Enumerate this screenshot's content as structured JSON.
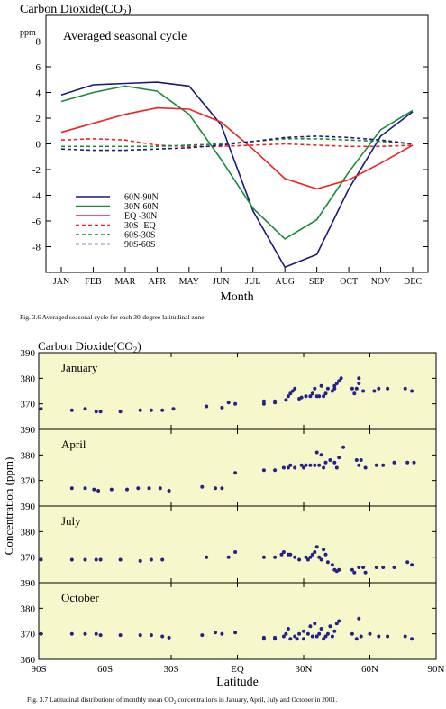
{
  "chart_data": [
    {
      "type": "line",
      "title": "Carbon Dioxide(CO2)",
      "title_base": "Carbon Dioxide(CO",
      "title_sub": "2",
      "title_close": ")",
      "subtitle": "Averaged seasonal cycle",
      "xlabel": "Month",
      "ylabel": "ppm",
      "ylim": [
        -10,
        10
      ],
      "yticks": [
        -8,
        -6,
        -4,
        -2,
        0,
        2,
        4,
        6,
        8
      ],
      "categories": [
        "JAN",
        "FEB",
        "MAR",
        "APR",
        "MAY",
        "JUN",
        "JUL",
        "AUG",
        "SEP",
        "OCT",
        "NOV",
        "DEC"
      ],
      "legend_position": "bottom-left",
      "grid": false,
      "series": [
        {
          "name": "60N-90N",
          "color": "#1a1a7a",
          "dash": "solid",
          "values": [
            3.8,
            4.6,
            4.7,
            4.8,
            4.5,
            1.5,
            -5.2,
            -9.6,
            -8.6,
            -3.5,
            0.6,
            2.5
          ]
        },
        {
          "name": "30N-60N",
          "color": "#1a8a3a",
          "dash": "solid",
          "values": [
            3.3,
            4.0,
            4.5,
            4.1,
            2.3,
            -1.2,
            -5.0,
            -7.4,
            -5.9,
            -2.2,
            1.1,
            2.6
          ]
        },
        {
          "name": "EQ -30N",
          "color": "#ee2222",
          "dash": "solid",
          "values": [
            0.9,
            1.6,
            2.3,
            2.8,
            2.7,
            1.7,
            -0.4,
            -2.7,
            -3.5,
            -2.8,
            -1.5,
            -0.1
          ]
        },
        {
          "name": "30S- EQ",
          "color": "#ee2222",
          "dash": "dashed",
          "values": [
            0.3,
            0.4,
            0.3,
            -0.1,
            -0.2,
            -0.2,
            -0.1,
            0.0,
            -0.1,
            -0.2,
            -0.2,
            -0.1
          ]
        },
        {
          "name": "60S-30S",
          "color": "#1a8a3a",
          "dash": "dashed",
          "values": [
            -0.2,
            -0.2,
            -0.2,
            -0.2,
            -0.1,
            0.0,
            0.2,
            0.4,
            0.4,
            0.3,
            0.2,
            0.0
          ]
        },
        {
          "name": "90S-60S",
          "color": "#1a1a7a",
          "dash": "dashed",
          "values": [
            -0.4,
            -0.5,
            -0.5,
            -0.4,
            -0.3,
            -0.1,
            0.2,
            0.5,
            0.6,
            0.5,
            0.3,
            0.0
          ]
        }
      ],
      "caption": "Fig. 3.6  Averaged seasonal cycle for each 30-degree latitudinal zone."
    },
    {
      "type": "scatter",
      "title": "Carbon Dioxide(CO2)",
      "title_base": "Carbon Dioxide(CO",
      "title_sub": "2",
      "title_close": ")",
      "xlabel": "Latitude",
      "ylabel": "Concentration (ppm)",
      "xlim": [
        -90,
        90
      ],
      "xticks": [
        -90,
        -60,
        -30,
        0,
        30,
        60,
        90
      ],
      "xtick_labels": [
        "90S",
        "60S",
        "30S",
        "EQ",
        "30N",
        "60N",
        "90N"
      ],
      "ylim": [
        360,
        390
      ],
      "yticks": [
        360,
        370,
        380,
        390
      ],
      "background": "#f7f7cc",
      "marker_color": "#22228a",
      "caption_parts": [
        "Fig. 3.7  Latitudinal distributions of monthly mean CO",
        "2",
        " concentrations in January, April, July and October in 2001."
      ],
      "panels": [
        {
          "name": "January",
          "points": [
            [
              -89,
              368
            ],
            [
              -75,
              367.5
            ],
            [
              -69,
              368
            ],
            [
              -64,
              367
            ],
            [
              -62,
              367
            ],
            [
              -53,
              367
            ],
            [
              -44,
              367.5
            ],
            [
              -39,
              367.5
            ],
            [
              -34,
              367.5
            ],
            [
              -29,
              368
            ],
            [
              -14,
              369
            ],
            [
              -7,
              368.5
            ],
            [
              -4,
              370.5
            ],
            [
              -1,
              370
            ],
            [
              12,
              370
            ],
            [
              12,
              371
            ],
            [
              17,
              370.5
            ],
            [
              17,
              371
            ],
            [
              22,
              371.5
            ],
            [
              23,
              373
            ],
            [
              24,
              374
            ],
            [
              25,
              375
            ],
            [
              26,
              376
            ],
            [
              28,
              372
            ],
            [
              29,
              372.5
            ],
            [
              31,
              373
            ],
            [
              33,
              373
            ],
            [
              34,
              374
            ],
            [
              35,
              376
            ],
            [
              36,
              373
            ],
            [
              37,
              373
            ],
            [
              38,
              377
            ],
            [
              39,
              373
            ],
            [
              40,
              374
            ],
            [
              41,
              376
            ],
            [
              43,
              375
            ],
            [
              44,
              376
            ],
            [
              44,
              377
            ],
            [
              45,
              378
            ],
            [
              46,
              379
            ],
            [
              47,
              380
            ],
            [
              52,
              376
            ],
            [
              53,
              374
            ],
            [
              54,
              376
            ],
            [
              55,
              378
            ],
            [
              55,
              380
            ],
            [
              57,
              375
            ],
            [
              62,
              375
            ],
            [
              64,
              376
            ],
            [
              68,
              376
            ],
            [
              76,
              376
            ],
            [
              79,
              375
            ]
          ]
        },
        {
          "name": "April",
          "points": [
            [
              -75,
              367
            ],
            [
              -69,
              367
            ],
            [
              -65,
              366.5
            ],
            [
              -63,
              366
            ],
            [
              -57,
              366.5
            ],
            [
              -50,
              366.5
            ],
            [
              -45,
              367
            ],
            [
              -40,
              367
            ],
            [
              -35,
              367
            ],
            [
              -31,
              366
            ],
            [
              -16,
              367.5
            ],
            [
              -10,
              367
            ],
            [
              -7,
              367
            ],
            [
              -1,
              373
            ],
            [
              12,
              374
            ],
            [
              17,
              374
            ],
            [
              21,
              375
            ],
            [
              23,
              375
            ],
            [
              24,
              376
            ],
            [
              26,
              375
            ],
            [
              29,
              376
            ],
            [
              30,
              375
            ],
            [
              31,
              376
            ],
            [
              33,
              376
            ],
            [
              35,
              376
            ],
            [
              36,
              381
            ],
            [
              37,
              376
            ],
            [
              38,
              380
            ],
            [
              39,
              375
            ],
            [
              40,
              377
            ],
            [
              42,
              378
            ],
            [
              44,
              377
            ],
            [
              45,
              375
            ],
            [
              46,
              379
            ],
            [
              48,
              383
            ],
            [
              54,
              378
            ],
            [
              55,
              376
            ],
            [
              56,
              378
            ],
            [
              58,
              375
            ],
            [
              63,
              376
            ],
            [
              66,
              376
            ],
            [
              71,
              377
            ],
            [
              77,
              377
            ],
            [
              80,
              377
            ]
          ]
        },
        {
          "name": "July",
          "points": [
            [
              -89,
              369
            ],
            [
              -75,
              369
            ],
            [
              -69,
              369
            ],
            [
              -64,
              369
            ],
            [
              -62,
              369
            ],
            [
              -53,
              369
            ],
            [
              -44,
              368.5
            ],
            [
              -39,
              369
            ],
            [
              -34,
              369
            ],
            [
              -14,
              370
            ],
            [
              -4,
              370
            ],
            [
              -1,
              372
            ],
            [
              12,
              370
            ],
            [
              17,
              370
            ],
            [
              20,
              371
            ],
            [
              21,
              372
            ],
            [
              23,
              371
            ],
            [
              24,
              371
            ],
            [
              26,
              370
            ],
            [
              28,
              369
            ],
            [
              31,
              370
            ],
            [
              32,
              369
            ],
            [
              33,
              370
            ],
            [
              34,
              371
            ],
            [
              35,
              372
            ],
            [
              36,
              374
            ],
            [
              37,
              370
            ],
            [
              38,
              369
            ],
            [
              39,
              373
            ],
            [
              40,
              371
            ],
            [
              41,
              368
            ],
            [
              43,
              367
            ],
            [
              44,
              365
            ],
            [
              45,
              364.5
            ],
            [
              46,
              365
            ],
            [
              52,
              365
            ],
            [
              53,
              364
            ],
            [
              55,
              366
            ],
            [
              57,
              366
            ],
            [
              58,
              364
            ],
            [
              63,
              366
            ],
            [
              66,
              366
            ],
            [
              71,
              366
            ],
            [
              77,
              368
            ],
            [
              79,
              367
            ]
          ]
        },
        {
          "name": "October",
          "points": [
            [
              -89,
              370
            ],
            [
              -75,
              370
            ],
            [
              -69,
              370
            ],
            [
              -64,
              370
            ],
            [
              -62,
              369.5
            ],
            [
              -53,
              369.5
            ],
            [
              -44,
              369.5
            ],
            [
              -39,
              369.5
            ],
            [
              -34,
              369
            ],
            [
              -31,
              368.5
            ],
            [
              -16,
              369.5
            ],
            [
              -10,
              370.5
            ],
            [
              -7,
              370
            ],
            [
              -1,
              370.5
            ],
            [
              12,
              368
            ],
            [
              12,
              368.5
            ],
            [
              17,
              368
            ],
            [
              17,
              368.5
            ],
            [
              21,
              369
            ],
            [
              22,
              370
            ],
            [
              23,
              372
            ],
            [
              24,
              368
            ],
            [
              26,
              369
            ],
            [
              27,
              368
            ],
            [
              28,
              370
            ],
            [
              30,
              371
            ],
            [
              30,
              368
            ],
            [
              32,
              370
            ],
            [
              33,
              373
            ],
            [
              34,
              369
            ],
            [
              35,
              374
            ],
            [
              36,
              369
            ],
            [
              37,
              370
            ],
            [
              38,
              372
            ],
            [
              39,
              368
            ],
            [
              40,
              369
            ],
            [
              41,
              370
            ],
            [
              42,
              373
            ],
            [
              43,
              369
            ],
            [
              44,
              371
            ],
            [
              45,
              374
            ],
            [
              46,
              375
            ],
            [
              52,
              370
            ],
            [
              54,
              368
            ],
            [
              55,
              376
            ],
            [
              56,
              369
            ],
            [
              60,
              370
            ],
            [
              64,
              369
            ],
            [
              68,
              369
            ],
            [
              76,
              369
            ],
            [
              79,
              368
            ]
          ]
        }
      ]
    }
  ]
}
